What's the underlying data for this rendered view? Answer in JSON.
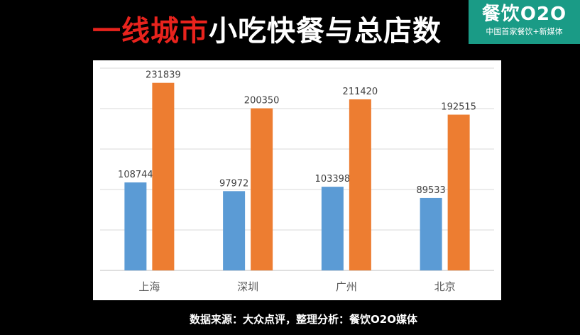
{
  "header": {
    "title_red": "一线城市",
    "title_white": "小吃快餐与总店数"
  },
  "logo": {
    "name": "餐饮O2O",
    "slogan": "中国首家餐饮+新媒体"
  },
  "footer": {
    "source": "数据来源：大众点评，整理分析：餐饮O2O媒体"
  },
  "chart_data": {
    "type": "bar",
    "categories": [
      "上海",
      "深圳",
      "广州",
      "北京"
    ],
    "series": [
      {
        "values": [
          108744,
          97972,
          103398,
          89533
        ],
        "color": "#5b9bd5"
      },
      {
        "values": [
          231839,
          200350,
          211420,
          192515
        ],
        "color": "#ed7d31"
      }
    ],
    "title": "",
    "xlabel": "",
    "ylabel": "",
    "ylim": [
      0,
      250000
    ],
    "grid": true
  }
}
